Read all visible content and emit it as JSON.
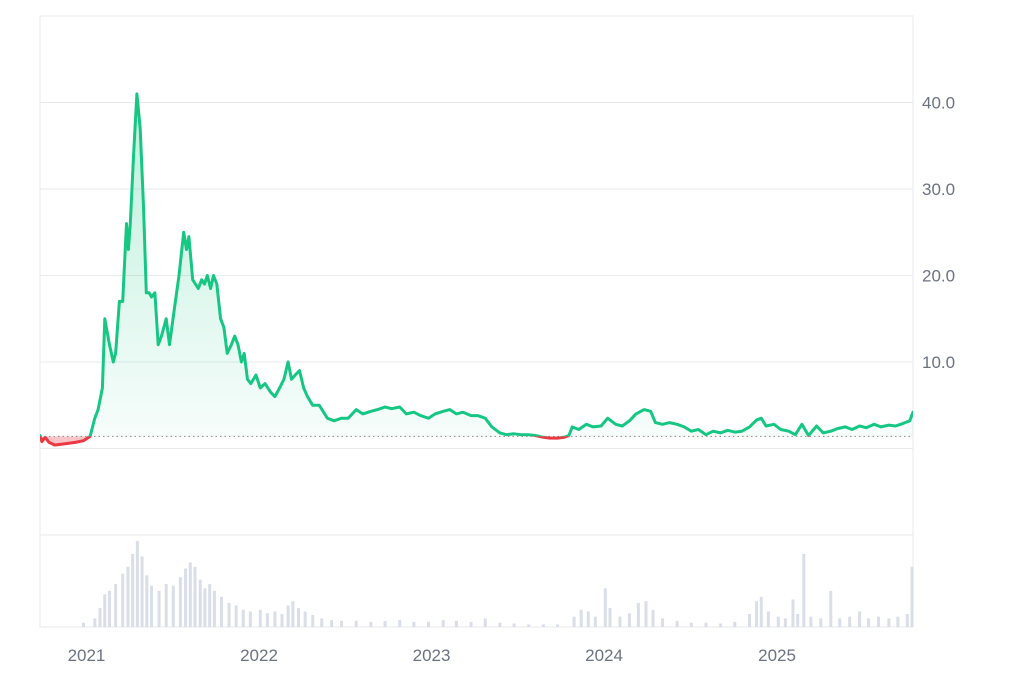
{
  "chart_data": {
    "type": "area",
    "title": "",
    "xlabel": "",
    "ylabel": "",
    "x_range": [
      "2020-10-01",
      "2025-10-22"
    ],
    "ylim": [
      -10,
      50
    ],
    "y_ticks": [
      10,
      20,
      30,
      40
    ],
    "y_tick_labels": [
      "10.0",
      "20.0",
      "30.0",
      "40.0"
    ],
    "x_tick_labels": [
      {
        "date": "2021-01-01",
        "label": "2021"
      },
      {
        "date": "2022-01-01",
        "label": "2022"
      },
      {
        "date": "2023-01-01",
        "label": "2023"
      },
      {
        "date": "2024-01-01",
        "label": "2024"
      },
      {
        "date": "2025-01-01",
        "label": "2025"
      }
    ],
    "baseline": 1.4,
    "colors": {
      "above": "#16c784",
      "below": "#ea3943",
      "volume": "#d9dee8",
      "grid": "#e8eaed",
      "axis_text": "#6b7280"
    },
    "series": [
      {
        "points": [
          [
            "2020-10-01",
            1.5
          ],
          [
            "2020-10-05",
            0.8
          ],
          [
            "2020-10-12",
            1.3
          ],
          [
            "2020-10-20",
            0.7
          ],
          [
            "2020-11-01",
            0.4
          ],
          [
            "2020-11-15",
            0.5
          ],
          [
            "2020-12-01",
            0.6
          ],
          [
            "2020-12-15",
            0.7
          ],
          [
            "2021-01-01",
            0.9
          ],
          [
            "2021-01-15",
            1.4
          ],
          [
            "2021-01-25",
            3.5
          ],
          [
            "2021-02-01",
            4.5
          ],
          [
            "2021-02-10",
            7.0
          ],
          [
            "2021-02-15",
            15.0
          ],
          [
            "2021-02-25",
            12.0
          ],
          [
            "2021-03-05",
            10.0
          ],
          [
            "2021-03-10",
            11.0
          ],
          [
            "2021-03-18",
            17.0
          ],
          [
            "2021-03-25",
            17.0
          ],
          [
            "2021-04-02",
            26.0
          ],
          [
            "2021-04-06",
            23.0
          ],
          [
            "2021-04-10",
            26.0
          ],
          [
            "2021-04-17",
            34.0
          ],
          [
            "2021-04-24",
            41.0
          ],
          [
            "2021-05-01",
            37.0
          ],
          [
            "2021-05-08",
            28.0
          ],
          [
            "2021-05-14",
            18.0
          ],
          [
            "2021-05-20",
            18.0
          ],
          [
            "2021-05-25",
            17.5
          ],
          [
            "2021-06-01",
            18.0
          ],
          [
            "2021-06-08",
            12.0
          ],
          [
            "2021-06-15",
            13.0
          ],
          [
            "2021-06-25",
            15.0
          ],
          [
            "2021-07-02",
            12.0
          ],
          [
            "2021-07-12",
            16.0
          ],
          [
            "2021-07-22",
            20.0
          ],
          [
            "2021-08-01",
            25.0
          ],
          [
            "2021-08-07",
            23.0
          ],
          [
            "2021-08-12",
            24.5
          ],
          [
            "2021-08-20",
            19.5
          ],
          [
            "2021-09-01",
            18.5
          ],
          [
            "2021-09-08",
            19.5
          ],
          [
            "2021-09-14",
            19.0
          ],
          [
            "2021-09-20",
            20.0
          ],
          [
            "2021-09-27",
            18.5
          ],
          [
            "2021-10-03",
            20.0
          ],
          [
            "2021-10-10",
            19.0
          ],
          [
            "2021-10-18",
            15.0
          ],
          [
            "2021-10-25",
            14.0
          ],
          [
            "2021-11-01",
            11.0
          ],
          [
            "2021-11-10",
            12.0
          ],
          [
            "2021-11-17",
            13.0
          ],
          [
            "2021-11-24",
            12.0
          ],
          [
            "2021-12-01",
            10.0
          ],
          [
            "2021-12-07",
            11.0
          ],
          [
            "2021-12-14",
            8.0
          ],
          [
            "2021-12-21",
            7.5
          ],
          [
            "2022-01-01",
            8.5
          ],
          [
            "2022-01-10",
            7.0
          ],
          [
            "2022-01-20",
            7.5
          ],
          [
            "2022-02-01",
            6.5
          ],
          [
            "2022-02-10",
            6.0
          ],
          [
            "2022-02-20",
            7.0
          ],
          [
            "2022-03-01",
            8.0
          ],
          [
            "2022-03-10",
            10.0
          ],
          [
            "2022-03-17",
            8.0
          ],
          [
            "2022-03-25",
            8.5
          ],
          [
            "2022-04-03",
            9.0
          ],
          [
            "2022-04-12",
            7.0
          ],
          [
            "2022-04-20",
            6.0
          ],
          [
            "2022-05-01",
            5.0
          ],
          [
            "2022-05-15",
            5.0
          ],
          [
            "2022-06-01",
            3.5
          ],
          [
            "2022-06-15",
            3.2
          ],
          [
            "2022-07-01",
            3.5
          ],
          [
            "2022-07-15",
            3.5
          ],
          [
            "2022-08-01",
            4.5
          ],
          [
            "2022-08-15",
            4.0
          ],
          [
            "2022-09-01",
            4.3
          ],
          [
            "2022-09-15",
            4.5
          ],
          [
            "2022-10-01",
            4.8
          ],
          [
            "2022-10-15",
            4.6
          ],
          [
            "2022-11-01",
            4.8
          ],
          [
            "2022-11-15",
            4.0
          ],
          [
            "2022-12-01",
            4.2
          ],
          [
            "2022-12-15",
            3.8
          ],
          [
            "2023-01-01",
            3.5
          ],
          [
            "2023-01-15",
            4.0
          ],
          [
            "2023-02-01",
            4.3
          ],
          [
            "2023-02-15",
            4.5
          ],
          [
            "2023-03-01",
            4.0
          ],
          [
            "2023-03-15",
            4.2
          ],
          [
            "2023-04-01",
            3.8
          ],
          [
            "2023-04-15",
            3.8
          ],
          [
            "2023-05-01",
            3.5
          ],
          [
            "2023-05-15",
            2.5
          ],
          [
            "2023-06-01",
            1.8
          ],
          [
            "2023-06-15",
            1.6
          ],
          [
            "2023-07-01",
            1.7
          ],
          [
            "2023-07-15",
            1.6
          ],
          [
            "2023-08-01",
            1.6
          ],
          [
            "2023-08-15",
            1.5
          ],
          [
            "2023-09-01",
            1.3
          ],
          [
            "2023-09-15",
            1.2
          ],
          [
            "2023-10-01",
            1.2
          ],
          [
            "2023-10-15",
            1.3
          ],
          [
            "2023-10-25",
            1.5
          ],
          [
            "2023-11-01",
            2.5
          ],
          [
            "2023-11-15",
            2.2
          ],
          [
            "2023-12-01",
            2.8
          ],
          [
            "2023-12-15",
            2.5
          ],
          [
            "2024-01-01",
            2.6
          ],
          [
            "2024-01-15",
            3.5
          ],
          [
            "2024-02-01",
            2.8
          ],
          [
            "2024-02-15",
            2.6
          ],
          [
            "2024-03-01",
            3.2
          ],
          [
            "2024-03-15",
            4.0
          ],
          [
            "2024-04-01",
            4.5
          ],
          [
            "2024-04-15",
            4.3
          ],
          [
            "2024-04-25",
            3.0
          ],
          [
            "2024-05-10",
            2.8
          ],
          [
            "2024-05-25",
            3.0
          ],
          [
            "2024-06-10",
            2.8
          ],
          [
            "2024-06-25",
            2.5
          ],
          [
            "2024-07-10",
            2.0
          ],
          [
            "2024-07-25",
            2.2
          ],
          [
            "2024-08-10",
            1.6
          ],
          [
            "2024-08-25",
            2.0
          ],
          [
            "2024-09-10",
            1.8
          ],
          [
            "2024-09-25",
            2.1
          ],
          [
            "2024-10-10",
            1.9
          ],
          [
            "2024-10-25",
            2.0
          ],
          [
            "2024-11-10",
            2.5
          ],
          [
            "2024-11-25",
            3.3
          ],
          [
            "2024-12-05",
            3.5
          ],
          [
            "2024-12-15",
            2.6
          ],
          [
            "2025-01-01",
            2.8
          ],
          [
            "2025-01-15",
            2.2
          ],
          [
            "2025-02-01",
            2.0
          ],
          [
            "2025-02-15",
            1.6
          ],
          [
            "2025-03-01",
            2.8
          ],
          [
            "2025-03-15",
            1.5
          ],
          [
            "2025-04-01",
            2.6
          ],
          [
            "2025-04-15",
            1.8
          ],
          [
            "2025-05-01",
            2.0
          ],
          [
            "2025-05-15",
            2.3
          ],
          [
            "2025-06-01",
            2.5
          ],
          [
            "2025-06-15",
            2.2
          ],
          [
            "2025-07-01",
            2.6
          ],
          [
            "2025-07-15",
            2.4
          ],
          [
            "2025-08-01",
            2.8
          ],
          [
            "2025-08-15",
            2.5
          ],
          [
            "2025-09-01",
            2.7
          ],
          [
            "2025-09-15",
            2.6
          ],
          [
            "2025-10-01",
            2.9
          ],
          [
            "2025-10-15",
            3.2
          ],
          [
            "2025-10-22",
            4.2
          ]
        ]
      }
    ],
    "volume": [
      [
        "2021-01-01",
        0.05
      ],
      [
        "2021-01-25",
        0.1
      ],
      [
        "2021-02-05",
        0.22
      ],
      [
        "2021-02-15",
        0.38
      ],
      [
        "2021-02-25",
        0.42
      ],
      [
        "2021-03-10",
        0.5
      ],
      [
        "2021-03-25",
        0.62
      ],
      [
        "2021-04-05",
        0.7
      ],
      [
        "2021-04-15",
        0.85
      ],
      [
        "2021-04-25",
        1.0
      ],
      [
        "2021-05-05",
        0.82
      ],
      [
        "2021-05-15",
        0.6
      ],
      [
        "2021-05-25",
        0.48
      ],
      [
        "2021-06-10",
        0.42
      ],
      [
        "2021-06-25",
        0.5
      ],
      [
        "2021-07-10",
        0.48
      ],
      [
        "2021-07-25",
        0.58
      ],
      [
        "2021-08-05",
        0.68
      ],
      [
        "2021-08-15",
        0.75
      ],
      [
        "2021-08-25",
        0.7
      ],
      [
        "2021-09-05",
        0.55
      ],
      [
        "2021-09-15",
        0.45
      ],
      [
        "2021-09-25",
        0.5
      ],
      [
        "2021-10-05",
        0.42
      ],
      [
        "2021-10-20",
        0.35
      ],
      [
        "2021-11-05",
        0.28
      ],
      [
        "2021-11-20",
        0.25
      ],
      [
        "2021-12-05",
        0.2
      ],
      [
        "2021-12-20",
        0.18
      ],
      [
        "2022-01-10",
        0.2
      ],
      [
        "2022-01-25",
        0.16
      ],
      [
        "2022-02-10",
        0.18
      ],
      [
        "2022-02-25",
        0.15
      ],
      [
        "2022-03-10",
        0.25
      ],
      [
        "2022-03-20",
        0.3
      ],
      [
        "2022-04-01",
        0.22
      ],
      [
        "2022-04-15",
        0.18
      ],
      [
        "2022-05-01",
        0.14
      ],
      [
        "2022-05-20",
        0.1
      ],
      [
        "2022-06-10",
        0.08
      ],
      [
        "2022-07-01",
        0.07
      ],
      [
        "2022-08-01",
        0.07
      ],
      [
        "2022-09-01",
        0.06
      ],
      [
        "2022-10-01",
        0.07
      ],
      [
        "2022-11-01",
        0.08
      ],
      [
        "2022-12-01",
        0.06
      ],
      [
        "2023-01-01",
        0.06
      ],
      [
        "2023-02-01",
        0.08
      ],
      [
        "2023-03-01",
        0.07
      ],
      [
        "2023-04-01",
        0.06
      ],
      [
        "2023-05-01",
        0.1
      ],
      [
        "2023-06-01",
        0.05
      ],
      [
        "2023-07-01",
        0.04
      ],
      [
        "2023-08-01",
        0.03
      ],
      [
        "2023-09-01",
        0.03
      ],
      [
        "2023-10-01",
        0.03
      ],
      [
        "2023-11-05",
        0.12
      ],
      [
        "2023-11-20",
        0.2
      ],
      [
        "2023-12-05",
        0.18
      ],
      [
        "2023-12-20",
        0.12
      ],
      [
        "2024-01-10",
        0.45
      ],
      [
        "2024-01-20",
        0.22
      ],
      [
        "2024-02-10",
        0.12
      ],
      [
        "2024-03-01",
        0.16
      ],
      [
        "2024-03-20",
        0.28
      ],
      [
        "2024-04-05",
        0.3
      ],
      [
        "2024-04-20",
        0.2
      ],
      [
        "2024-05-10",
        0.1
      ],
      [
        "2024-06-10",
        0.07
      ],
      [
        "2024-07-10",
        0.05
      ],
      [
        "2024-08-10",
        0.05
      ],
      [
        "2024-09-10",
        0.04
      ],
      [
        "2024-10-10",
        0.06
      ],
      [
        "2024-11-10",
        0.15
      ],
      [
        "2024-11-25",
        0.3
      ],
      [
        "2024-12-05",
        0.35
      ],
      [
        "2024-12-20",
        0.18
      ],
      [
        "2025-01-10",
        0.12
      ],
      [
        "2025-01-25",
        0.1
      ],
      [
        "2025-02-10",
        0.32
      ],
      [
        "2025-02-20",
        0.15
      ],
      [
        "2025-03-05",
        0.85
      ],
      [
        "2025-03-20",
        0.12
      ],
      [
        "2025-04-10",
        0.1
      ],
      [
        "2025-05-01",
        0.42
      ],
      [
        "2025-05-20",
        0.1
      ],
      [
        "2025-06-10",
        0.12
      ],
      [
        "2025-07-01",
        0.18
      ],
      [
        "2025-07-20",
        0.1
      ],
      [
        "2025-08-10",
        0.12
      ],
      [
        "2025-09-01",
        0.1
      ],
      [
        "2025-09-20",
        0.12
      ],
      [
        "2025-10-10",
        0.15
      ],
      [
        "2025-10-20",
        0.7
      ]
    ]
  }
}
